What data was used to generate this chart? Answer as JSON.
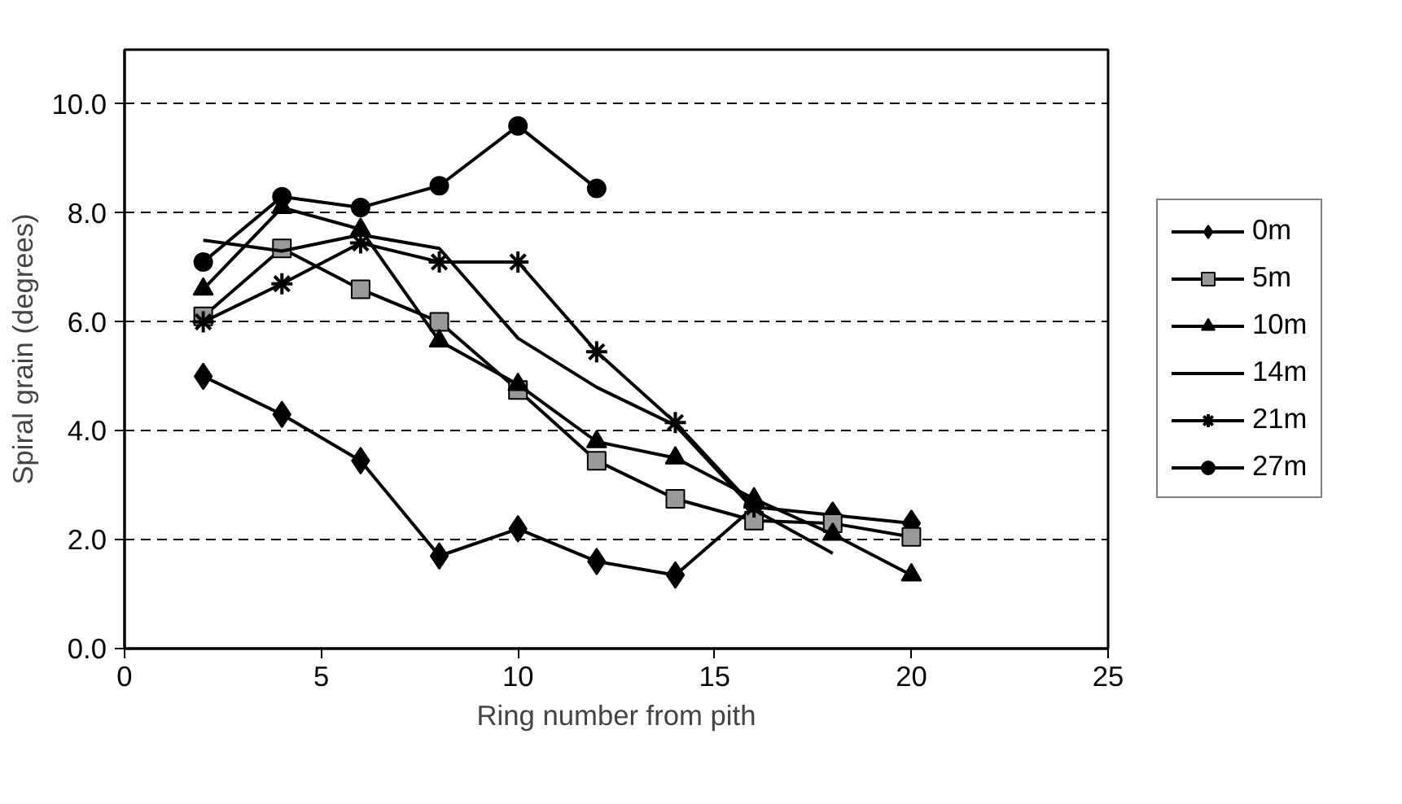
{
  "chart_data": {
    "type": "line",
    "xlabel": "Ring number from pith",
    "ylabel": "Spiral grain (degrees)",
    "xlim": [
      0,
      25
    ],
    "xticks": [
      0,
      5,
      10,
      15,
      20,
      25
    ],
    "ylim": [
      0,
      11
    ],
    "yticks": [
      {
        "value": 0,
        "label": "0.0"
      },
      {
        "value": 2,
        "label": "2.0"
      },
      {
        "value": 4,
        "label": "4.0"
      },
      {
        "value": 6,
        "label": "6.0"
      },
      {
        "value": 8,
        "label": "8.0"
      },
      {
        "value": 10,
        "label": "10.0"
      }
    ],
    "grid": "y",
    "legend": "right",
    "line_style": "solid",
    "series": [
      {
        "name": "0m",
        "color": "#000000",
        "marker": "diamond",
        "x": [
          2,
          4,
          6,
          8,
          10,
          12,
          14,
          16,
          18,
          20
        ],
        "values": [
          5.0,
          4.3,
          3.45,
          1.7,
          2.2,
          1.6,
          1.35,
          2.6,
          2.45,
          2.3
        ]
      },
      {
        "name": "5m",
        "color": "#000000",
        "marker": "square",
        "x": [
          2,
          4,
          6,
          8,
          10,
          12,
          14,
          16,
          18,
          20
        ],
        "values": [
          6.1,
          7.35,
          6.6,
          6.0,
          4.75,
          3.45,
          2.75,
          2.35,
          2.3,
          2.05
        ]
      },
      {
        "name": "10m",
        "color": "#000000",
        "marker": "triangle",
        "x": [
          2,
          4,
          6,
          8,
          10,
          12,
          14,
          16,
          18,
          20
        ],
        "values": [
          6.6,
          8.1,
          7.7,
          5.65,
          4.85,
          3.8,
          3.5,
          2.75,
          2.1,
          1.35
        ]
      },
      {
        "name": "14m",
        "color": "#000000",
        "marker": "none",
        "x": [
          2,
          4,
          6,
          8,
          10,
          12,
          14,
          16,
          18
        ],
        "values": [
          7.5,
          7.3,
          7.6,
          7.35,
          5.7,
          4.8,
          4.1,
          2.55,
          1.75
        ]
      },
      {
        "name": "21m",
        "color": "#000000",
        "marker": "cross",
        "x": [
          2,
          4,
          6,
          8,
          10,
          12,
          14,
          16
        ],
        "values": [
          6.0,
          6.7,
          7.45,
          7.1,
          7.1,
          5.45,
          4.15,
          2.6
        ]
      },
      {
        "name": "27m",
        "color": "#000000",
        "marker": "circle",
        "x": [
          2,
          4,
          6,
          8,
          10,
          12
        ],
        "values": [
          7.1,
          8.3,
          8.1,
          8.5,
          9.6,
          8.45
        ]
      }
    ]
  }
}
